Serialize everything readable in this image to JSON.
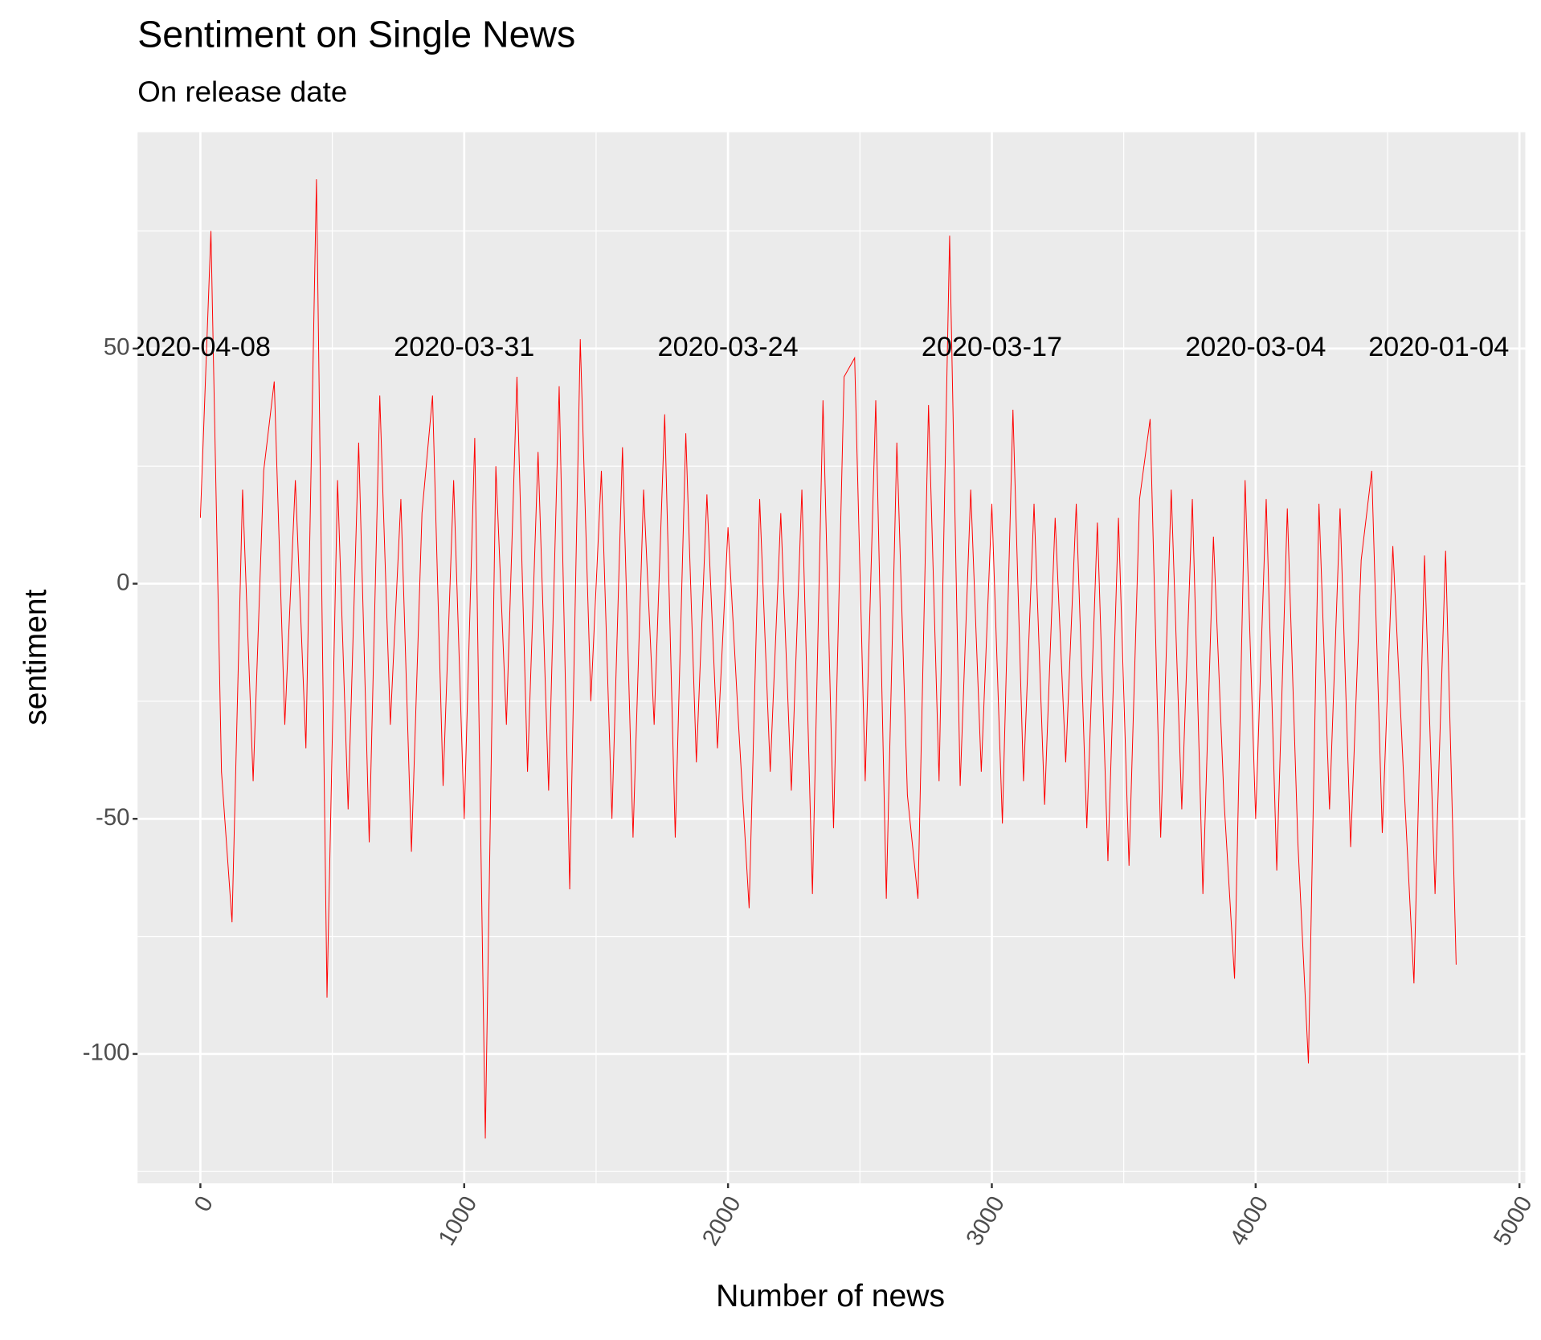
{
  "chart_data": {
    "type": "line",
    "title": "Sentiment on Single News",
    "subtitle": "On release date",
    "x_label": "Number of news",
    "y_label": "sentiment",
    "xlim": [
      -238,
      5022
    ],
    "ylim": [
      -127.5,
      96
    ],
    "xticks": [
      0,
      1000,
      2000,
      3000,
      4000,
      5000
    ],
    "x_minor_ticks": [
      500,
      1500,
      2500,
      3500,
      4500
    ],
    "yticks": [
      -100,
      -50,
      0,
      50
    ],
    "y_minor_ticks": [
      -125,
      -75,
      -25,
      25,
      75
    ],
    "grid": true,
    "series": [
      {
        "color": "#ff0000",
        "x": [
          0,
          40,
          80,
          120,
          160,
          200,
          240,
          280,
          320,
          360,
          400,
          440,
          480,
          520,
          560,
          600,
          640,
          680,
          720,
          760,
          800,
          840,
          880,
          920,
          960,
          1000,
          1040,
          1080,
          1120,
          1160,
          1200,
          1240,
          1280,
          1320,
          1360,
          1400,
          1440,
          1480,
          1520,
          1560,
          1600,
          1640,
          1680,
          1720,
          1760,
          1800,
          1840,
          1880,
          1920,
          1960,
          2000,
          2040,
          2080,
          2120,
          2160,
          2200,
          2240,
          2280,
          2320,
          2360,
          2400,
          2440,
          2480,
          2520,
          2560,
          2600,
          2640,
          2680,
          2720,
          2760,
          2800,
          2840,
          2880,
          2920,
          2960,
          3000,
          3040,
          3080,
          3120,
          3160,
          3200,
          3240,
          3280,
          3320,
          3360,
          3400,
          3440,
          3480,
          3520,
          3560,
          3600,
          3640,
          3680,
          3720,
          3760,
          3800,
          3840,
          3880,
          3920,
          3960,
          4000,
          4040,
          4080,
          4120,
          4160,
          4200,
          4240,
          4280,
          4320,
          4360,
          4400,
          4440,
          4480,
          4520,
          4560,
          4600,
          4640,
          4680,
          4720,
          4760
        ],
        "values": [
          14,
          75,
          -40,
          -72,
          20,
          -42,
          24,
          43,
          -30,
          22,
          -35,
          86,
          -88,
          22,
          -48,
          30,
          -55,
          40,
          -30,
          18,
          -57,
          15,
          40,
          -43,
          22,
          -50,
          31,
          -118,
          25,
          -30,
          44,
          -40,
          28,
          -44,
          42,
          -65,
          52,
          -25,
          24,
          -50,
          29,
          -54,
          20,
          -30,
          36,
          -54,
          32,
          -38,
          19,
          -35,
          12,
          -30,
          -69,
          18,
          -40,
          15,
          -44,
          20,
          -66,
          39,
          -52,
          44,
          48,
          -42,
          39,
          -67,
          30,
          -45,
          -67,
          38,
          -42,
          74,
          -43,
          20,
          -40,
          17,
          -51,
          37,
          -42,
          17,
          -47,
          14,
          -38,
          17,
          -52,
          13,
          -59,
          14,
          -60,
          18,
          35,
          -54,
          20,
          -48,
          18,
          -66,
          10,
          -46,
          -84,
          22,
          -50,
          18,
          -61,
          16,
          -55,
          -102,
          17,
          -48,
          16,
          -56,
          5,
          24,
          -53,
          8,
          -40,
          -85,
          6,
          -66,
          7,
          -81
        ]
      }
    ],
    "annotations": [
      {
        "text": "2020-04-08",
        "x": 0,
        "y": 50
      },
      {
        "text": "2020-03-31",
        "x": 1000,
        "y": 50
      },
      {
        "text": "2020-03-24",
        "x": 2000,
        "y": 50
      },
      {
        "text": "2020-03-17",
        "x": 3000,
        "y": 50
      },
      {
        "text": "2020-03-04",
        "x": 4000,
        "y": 50
      },
      {
        "text": "2020-01-04",
        "x": 4694,
        "y": 50
      }
    ]
  }
}
